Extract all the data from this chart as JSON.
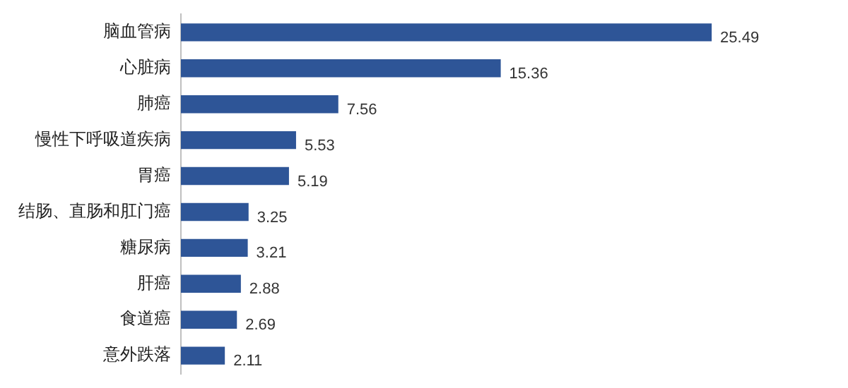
{
  "chart_data": {
    "type": "bar",
    "orientation": "horizontal",
    "categories": [
      "脑血管病",
      "心脏病",
      "肺癌",
      "慢性下呼吸道疾病",
      "胃癌",
      "结肠、直肠和肛门癌",
      "糖尿病",
      "肝癌",
      "食道癌",
      "意外跌落"
    ],
    "values": [
      25.49,
      15.36,
      7.56,
      5.53,
      5.19,
      3.25,
      3.21,
      2.88,
      2.69,
      2.11
    ],
    "color": "#2e5597",
    "data_labels": true
  }
}
